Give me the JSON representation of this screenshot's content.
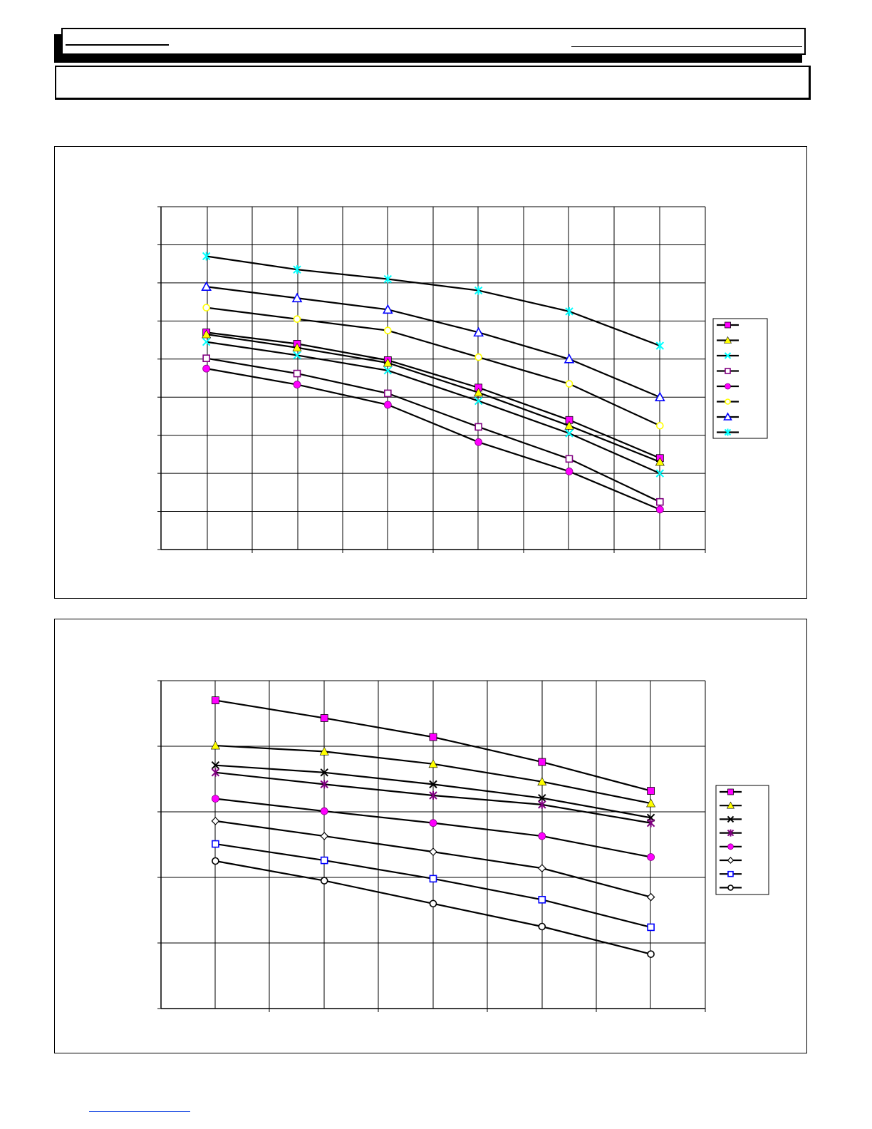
{
  "chart_data": [
    {
      "type": "line",
      "title": "",
      "xlabel": "",
      "ylabel": "",
      "x": [
        1,
        2,
        3,
        4,
        5,
        6
      ],
      "xlim": [
        0.5,
        6.5
      ],
      "ylim": [
        0,
        9
      ],
      "grid": true,
      "legend": "right",
      "series": [
        {
          "marker": "square-filled",
          "color": "#ff00ff",
          "values": [
            5.7,
            5.4,
            4.97,
            4.25,
            3.4,
            2.4
          ]
        },
        {
          "marker": "triangle-filled",
          "color": "#ffff00",
          "values": [
            5.65,
            5.3,
            4.9,
            4.12,
            3.25,
            2.3
          ]
        },
        {
          "marker": "x",
          "color": "#00ffff",
          "values": [
            5.45,
            5.1,
            4.7,
            3.9,
            3.05,
            2.0
          ]
        },
        {
          "marker": "square-open",
          "color": "#800080",
          "values": [
            5.02,
            4.62,
            4.1,
            3.22,
            2.38,
            1.25
          ]
        },
        {
          "marker": "circle-filled",
          "color": "#ff00ff",
          "values": [
            4.75,
            4.33,
            3.8,
            2.82,
            2.05,
            1.05
          ]
        },
        {
          "marker": "circle-open",
          "color": "#ffff00",
          "values": [
            6.35,
            6.05,
            5.75,
            5.05,
            4.35,
            3.25
          ]
        },
        {
          "marker": "triangle-open",
          "color": "#0000ff",
          "values": [
            6.9,
            6.6,
            6.3,
            5.7,
            5.0,
            4.0
          ]
        },
        {
          "marker": "star",
          "color": "#00ffff",
          "values": [
            7.7,
            7.35,
            7.1,
            6.8,
            6.25,
            5.35
          ]
        }
      ]
    },
    {
      "type": "line",
      "title": "",
      "xlabel": "",
      "ylabel": "",
      "x": [
        1,
        2,
        3,
        4,
        5
      ],
      "xlim": [
        0.5,
        5.5
      ],
      "ylim": [
        0,
        5
      ],
      "grid": true,
      "legend": "right",
      "series": [
        {
          "marker": "square-filled",
          "color": "#ff00ff",
          "values": [
            4.7,
            4.43,
            4.14,
            3.76,
            3.32
          ]
        },
        {
          "marker": "triangle-filled",
          "color": "#ffff00",
          "values": [
            4.01,
            3.92,
            3.73,
            3.46,
            3.13
          ]
        },
        {
          "marker": "x",
          "color": "#000000",
          "values": [
            3.71,
            3.6,
            3.42,
            3.21,
            2.91
          ]
        },
        {
          "marker": "star",
          "color": "#800080",
          "values": [
            3.6,
            3.42,
            3.25,
            3.11,
            2.83
          ]
        },
        {
          "marker": "circle-filled",
          "color": "#ff00ff",
          "values": [
            3.2,
            3.01,
            2.83,
            2.63,
            2.31
          ]
        },
        {
          "marker": "diamond",
          "color": "#000000",
          "values": [
            2.86,
            2.63,
            2.39,
            2.14,
            1.7
          ]
        },
        {
          "marker": "square-open",
          "color": "#0000ff",
          "values": [
            2.51,
            2.26,
            1.98,
            1.66,
            1.24
          ]
        },
        {
          "marker": "circle-open",
          "color": "#000000",
          "values": [
            2.25,
            1.95,
            1.6,
            1.25,
            0.83
          ]
        }
      ]
    }
  ]
}
